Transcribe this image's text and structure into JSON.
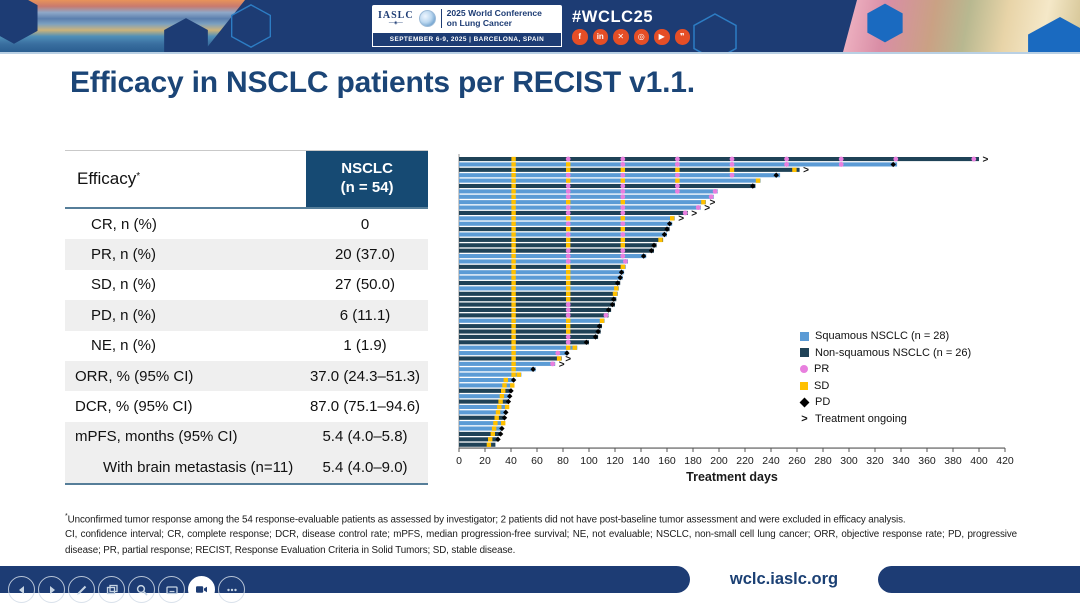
{
  "header": {
    "logo": {
      "org": "IASLC",
      "title_line1": "2025 World Conference",
      "title_line2": "on Lung Cancer",
      "banner": "SEPTEMBER 6-9, 2025  |  BARCELONA, SPAIN"
    },
    "hashtag": "#WCLC25",
    "social": [
      {
        "name": "facebook",
        "glyph": "f"
      },
      {
        "name": "linkedin",
        "glyph": "in"
      },
      {
        "name": "x-twitter",
        "glyph": "✕"
      },
      {
        "name": "instagram",
        "glyph": "◎"
      },
      {
        "name": "youtube",
        "glyph": "▶"
      },
      {
        "name": "wechat",
        "glyph": "❞"
      }
    ]
  },
  "slide": {
    "title": "Efficacy in NSCLC patients per RECIST v1.1.",
    "table": {
      "header_label": "Efficacy",
      "header_star": "*",
      "col_header_line1": "NSCLC",
      "col_header_line2": "(n = 54)",
      "rows": [
        {
          "label": "CR, n (%)",
          "value": "0",
          "indent": 1,
          "shade": false
        },
        {
          "label": "PR, n (%)",
          "value": "20 (37.0)",
          "indent": 1,
          "shade": true
        },
        {
          "label": "SD, n (%)",
          "value": "27 (50.0)",
          "indent": 1,
          "shade": false
        },
        {
          "label": "PD, n (%)",
          "value": "6 (11.1)",
          "indent": 1,
          "shade": true
        },
        {
          "label": "NE, n (%)",
          "value": "1 (1.9)",
          "indent": 1,
          "shade": false
        },
        {
          "label": "ORR, % (95% CI)",
          "value": "37.0 (24.3–51.3)",
          "indent": 0,
          "shade": true
        },
        {
          "label": "DCR, % (95% CI)",
          "value": "87.0 (75.1–94.6)",
          "indent": 0,
          "shade": false
        },
        {
          "label": "mPFS, months (95% CI)",
          "value": "5.4 (4.0–5.8)",
          "indent": 0,
          "shade": true
        },
        {
          "label": "With brain metastasis (n=11)",
          "value": "5.4 (4.0–9.0)",
          "indent": 2,
          "shade": true
        }
      ]
    },
    "footnote_star": "*",
    "footnote1": "Unconfirmed tumor response among the 54 response-evaluable patients as assessed by investigator; 2 patients did not have post-baseline tumor assessment and were excluded in efficacy analysis.",
    "footnote2": "CI, confidence interval; CR, complete response; DCR, disease control rate; mPFS, median progression-free survival; NE, not evaluable; NSCLC, non-small cell lung cancer; ORR, objective response rate; PD, progressive disease; PR, partial response; RECIST, Response Evaluation Criteria in Solid Tumors; SD, stable disease."
  },
  "chart_data": {
    "type": "bar",
    "subtype": "swimmer-plot",
    "xlabel": "Treatment days",
    "xlim": [
      0,
      420
    ],
    "xticks": [
      0,
      20,
      40,
      60,
      80,
      100,
      120,
      140,
      160,
      180,
      200,
      220,
      240,
      260,
      280,
      300,
      320,
      340,
      360,
      380,
      400,
      420
    ],
    "legend": [
      {
        "label": "Squamous NSCLC (n = 28)",
        "swatch": "sq"
      },
      {
        "label": "Non-squamous NSCLC (n = 26)",
        "swatch": "nsq"
      },
      {
        "label": "PR",
        "swatch": "pr"
      },
      {
        "label": "SD",
        "swatch": "sd"
      },
      {
        "label": "PD",
        "swatch": "pd"
      },
      {
        "label": "Treatment ongoing",
        "swatch": "ongoing"
      }
    ],
    "colors": {
      "squamous": "#5b9bd5",
      "non_squamous": "#1f4257",
      "pr": "#e87fde",
      "sd": "#ffc000",
      "pd": "#000000"
    },
    "patients": [
      {
        "d": 400,
        "g": "nsq",
        "on": true,
        "m": [
          [
            42,
            "SD"
          ],
          [
            84,
            "PR"
          ],
          [
            126,
            "PR"
          ],
          [
            168,
            "PR"
          ],
          [
            210,
            "PR"
          ],
          [
            252,
            "PR"
          ],
          [
            294,
            "PR"
          ],
          [
            336,
            "PR"
          ],
          [
            396,
            "PR"
          ]
        ]
      },
      {
        "d": 337,
        "g": "sq",
        "m": [
          [
            42,
            "SD"
          ],
          [
            84,
            "SD"
          ],
          [
            126,
            "PR"
          ],
          [
            168,
            "PR"
          ],
          [
            210,
            "PR"
          ],
          [
            252,
            "PR"
          ],
          [
            294,
            "PR"
          ],
          [
            334,
            "PD"
          ]
        ]
      },
      {
        "d": 262,
        "g": "nsq",
        "on": true,
        "m": [
          [
            42,
            "SD"
          ],
          [
            84,
            "SD"
          ],
          [
            126,
            "SD"
          ],
          [
            168,
            "SD"
          ],
          [
            210,
            "SD"
          ],
          [
            258,
            "SD"
          ]
        ]
      },
      {
        "d": 247,
        "g": "sq",
        "m": [
          [
            42,
            "SD"
          ],
          [
            84,
            "PR"
          ],
          [
            126,
            "PR"
          ],
          [
            168,
            "PR"
          ],
          [
            210,
            "PR"
          ],
          [
            244,
            "PD"
          ]
        ]
      },
      {
        "d": 232,
        "g": "sq",
        "m": [
          [
            42,
            "SD"
          ],
          [
            84,
            "SD"
          ],
          [
            126,
            "SD"
          ],
          [
            168,
            "SD"
          ],
          [
            230,
            "SD"
          ]
        ]
      },
      {
        "d": 228,
        "g": "nsq",
        "m": [
          [
            42,
            "SD"
          ],
          [
            84,
            "PR"
          ],
          [
            126,
            "PR"
          ],
          [
            168,
            "PR"
          ],
          [
            226,
            "PD"
          ]
        ]
      },
      {
        "d": 199,
        "g": "sq",
        "m": [
          [
            42,
            "SD"
          ],
          [
            84,
            "PR"
          ],
          [
            126,
            "PR"
          ],
          [
            168,
            "PR"
          ],
          [
            197,
            "PR"
          ]
        ]
      },
      {
        "d": 196,
        "g": "sq",
        "m": [
          [
            42,
            "SD"
          ],
          [
            84,
            "PR"
          ],
          [
            126,
            "PR"
          ],
          [
            194,
            "PR"
          ]
        ]
      },
      {
        "d": 190,
        "g": "sq",
        "on": true,
        "m": [
          [
            42,
            "SD"
          ],
          [
            84,
            "SD"
          ],
          [
            126,
            "SD"
          ],
          [
            188,
            "SD"
          ]
        ]
      },
      {
        "d": 186,
        "g": "sq",
        "on": true,
        "m": [
          [
            42,
            "SD"
          ],
          [
            84,
            "PR"
          ],
          [
            126,
            "PR"
          ],
          [
            184,
            "PR"
          ]
        ]
      },
      {
        "d": 176,
        "g": "nsq",
        "on": true,
        "m": [
          [
            42,
            "SD"
          ],
          [
            84,
            "PR"
          ],
          [
            126,
            "PR"
          ],
          [
            174,
            "PR"
          ]
        ]
      },
      {
        "d": 166,
        "g": "sq",
        "on": true,
        "m": [
          [
            42,
            "SD"
          ],
          [
            84,
            "SD"
          ],
          [
            126,
            "SD"
          ],
          [
            164,
            "SD"
          ]
        ]
      },
      {
        "d": 164,
        "g": "sq",
        "m": [
          [
            42,
            "SD"
          ],
          [
            84,
            "PR"
          ],
          [
            126,
            "PR"
          ],
          [
            162,
            "PD"
          ]
        ]
      },
      {
        "d": 162,
        "g": "nsq",
        "m": [
          [
            42,
            "SD"
          ],
          [
            84,
            "SD"
          ],
          [
            126,
            "SD"
          ],
          [
            160,
            "PD"
          ]
        ]
      },
      {
        "d": 160,
        "g": "sq",
        "m": [
          [
            42,
            "SD"
          ],
          [
            84,
            "PR"
          ],
          [
            126,
            "PR"
          ],
          [
            158,
            "PD"
          ]
        ]
      },
      {
        "d": 157,
        "g": "nsq",
        "m": [
          [
            42,
            "SD"
          ],
          [
            84,
            "SD"
          ],
          [
            126,
            "SD"
          ],
          [
            155,
            "SD"
          ]
        ]
      },
      {
        "d": 152,
        "g": "nsq",
        "m": [
          [
            42,
            "SD"
          ],
          [
            84,
            "SD"
          ],
          [
            126,
            "SD"
          ],
          [
            150,
            "PD"
          ]
        ]
      },
      {
        "d": 150,
        "g": "nsq",
        "m": [
          [
            42,
            "SD"
          ],
          [
            84,
            "PR"
          ],
          [
            126,
            "PR"
          ],
          [
            148,
            "PD"
          ]
        ]
      },
      {
        "d": 144,
        "g": "sq",
        "m": [
          [
            42,
            "SD"
          ],
          [
            84,
            "PR"
          ],
          [
            126,
            "PR"
          ],
          [
            142,
            "PD"
          ]
        ]
      },
      {
        "d": 130,
        "g": "sq",
        "m": [
          [
            42,
            "SD"
          ],
          [
            84,
            "PR"
          ],
          [
            128,
            "PR"
          ]
        ]
      },
      {
        "d": 128,
        "g": "nsq",
        "m": [
          [
            42,
            "SD"
          ],
          [
            84,
            "SD"
          ],
          [
            126,
            "SD"
          ]
        ]
      },
      {
        "d": 127,
        "g": "sq",
        "m": [
          [
            42,
            "SD"
          ],
          [
            84,
            "SD"
          ],
          [
            125,
            "PD"
          ]
        ]
      },
      {
        "d": 126,
        "g": "sq",
        "m": [
          [
            42,
            "SD"
          ],
          [
            84,
            "SD"
          ],
          [
            124,
            "PD"
          ]
        ]
      },
      {
        "d": 124,
        "g": "nsq",
        "m": [
          [
            42,
            "SD"
          ],
          [
            84,
            "SD"
          ],
          [
            122,
            "PD"
          ]
        ]
      },
      {
        "d": 123,
        "g": "sq",
        "m": [
          [
            42,
            "SD"
          ],
          [
            84,
            "SD"
          ],
          [
            121,
            "SD"
          ]
        ]
      },
      {
        "d": 122,
        "g": "nsq",
        "m": [
          [
            42,
            "SD"
          ],
          [
            84,
            "SD"
          ],
          [
            120,
            "SD"
          ]
        ]
      },
      {
        "d": 121,
        "g": "nsq",
        "m": [
          [
            42,
            "SD"
          ],
          [
            84,
            "SD"
          ],
          [
            119,
            "PD"
          ]
        ]
      },
      {
        "d": 120,
        "g": "nsq",
        "m": [
          [
            42,
            "SD"
          ],
          [
            84,
            "PR"
          ],
          [
            118,
            "PD"
          ]
        ]
      },
      {
        "d": 117,
        "g": "nsq",
        "m": [
          [
            42,
            "SD"
          ],
          [
            84,
            "PR"
          ],
          [
            115,
            "PD"
          ]
        ]
      },
      {
        "d": 115,
        "g": "nsq",
        "m": [
          [
            42,
            "SD"
          ],
          [
            84,
            "PR"
          ],
          [
            113,
            "PR"
          ]
        ]
      },
      {
        "d": 112,
        "g": "sq",
        "m": [
          [
            42,
            "SD"
          ],
          [
            84,
            "SD"
          ],
          [
            110,
            "SD"
          ]
        ]
      },
      {
        "d": 110,
        "g": "nsq",
        "m": [
          [
            42,
            "SD"
          ],
          [
            84,
            "SD"
          ],
          [
            108,
            "PD"
          ]
        ]
      },
      {
        "d": 109,
        "g": "nsq",
        "m": [
          [
            42,
            "SD"
          ],
          [
            84,
            "SD"
          ],
          [
            107,
            "PD"
          ]
        ]
      },
      {
        "d": 107,
        "g": "nsq",
        "m": [
          [
            42,
            "SD"
          ],
          [
            84,
            "PR"
          ],
          [
            105,
            "PD"
          ]
        ]
      },
      {
        "d": 100,
        "g": "nsq",
        "m": [
          [
            42,
            "SD"
          ],
          [
            84,
            "PR"
          ],
          [
            98,
            "PD"
          ]
        ]
      },
      {
        "d": 91,
        "g": "sq",
        "m": [
          [
            42,
            "SD"
          ],
          [
            84,
            "SD"
          ],
          [
            89,
            "SD"
          ]
        ]
      },
      {
        "d": 84,
        "g": "sq",
        "m": [
          [
            42,
            "SD"
          ],
          [
            76,
            "PR"
          ],
          [
            83,
            "PD"
          ]
        ]
      },
      {
        "d": 79,
        "g": "nsq",
        "on": true,
        "m": [
          [
            42,
            "SD"
          ],
          [
            77,
            "SD"
          ]
        ]
      },
      {
        "d": 74,
        "g": "sq",
        "on": true,
        "m": [
          [
            42,
            "SD"
          ],
          [
            72,
            "PR"
          ]
        ]
      },
      {
        "d": 59,
        "g": "sq",
        "m": [
          [
            42,
            "SD"
          ],
          [
            57,
            "PD"
          ]
        ]
      },
      {
        "d": 48,
        "g": "sq",
        "m": [
          [
            42,
            "SD"
          ],
          [
            46,
            "SD"
          ]
        ]
      },
      {
        "d": 42,
        "g": "sq",
        "m": [
          [
            36,
            "SD"
          ],
          [
            42,
            "PD"
          ]
        ]
      },
      {
        "d": 41,
        "g": "sq",
        "m": [
          [
            35,
            "SD"
          ],
          [
            41,
            "SD"
          ]
        ]
      },
      {
        "d": 40,
        "g": "nsq",
        "m": [
          [
            34,
            "SD"
          ],
          [
            40,
            "PD"
          ]
        ]
      },
      {
        "d": 39,
        "g": "sq",
        "m": [
          [
            33,
            "SD"
          ],
          [
            39,
            "PD"
          ]
        ]
      },
      {
        "d": 38,
        "g": "nsq",
        "m": [
          [
            32,
            "SD"
          ],
          [
            38,
            "PD"
          ]
        ]
      },
      {
        "d": 37,
        "g": "sq",
        "m": [
          [
            31,
            "SD"
          ],
          [
            37,
            "SD"
          ]
        ]
      },
      {
        "d": 36,
        "g": "sq",
        "m": [
          [
            30,
            "SD"
          ],
          [
            36,
            "PD"
          ]
        ]
      },
      {
        "d": 35,
        "g": "nsq",
        "m": [
          [
            29,
            "SD"
          ],
          [
            35,
            "PD"
          ]
        ]
      },
      {
        "d": 34,
        "g": "sq",
        "m": [
          [
            28,
            "SD"
          ],
          [
            34,
            "SD"
          ]
        ]
      },
      {
        "d": 33,
        "g": "sq",
        "m": [
          [
            27,
            "SD"
          ],
          [
            33,
            "PD"
          ]
        ]
      },
      {
        "d": 32,
        "g": "nsq",
        "m": [
          [
            26,
            "SD"
          ],
          [
            32,
            "PD"
          ]
        ]
      },
      {
        "d": 30,
        "g": "nsq",
        "m": [
          [
            24,
            "SD"
          ],
          [
            30,
            "PD"
          ]
        ]
      },
      {
        "d": 28,
        "g": "nsq",
        "m": [
          [
            23,
            "SD"
          ]
        ]
      }
    ]
  },
  "footer": {
    "url": "wclc.iaslc.org",
    "toolbar": [
      {
        "name": "previous"
      },
      {
        "name": "next"
      },
      {
        "name": "annotate"
      },
      {
        "name": "slides"
      },
      {
        "name": "zoom"
      },
      {
        "name": "keyboard"
      },
      {
        "name": "camera",
        "active": true
      },
      {
        "name": "more"
      }
    ]
  }
}
